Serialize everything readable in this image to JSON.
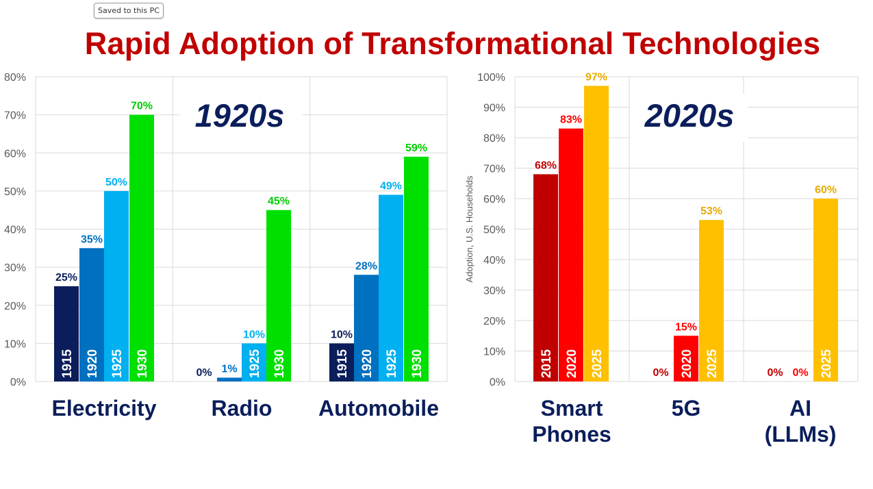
{
  "notification": {
    "text": "Saved to this PC"
  },
  "title": "Rapid Adoption of Transformational Technologies",
  "chart_data": [
    {
      "type": "bar",
      "label": "1920s",
      "ylabel": "",
      "ylim": [
        0,
        80
      ],
      "yticks": [
        "0%",
        "10%",
        "20%",
        "30%",
        "40%",
        "50%",
        "60%",
        "70%",
        "80%"
      ],
      "categories": [
        "Electricity",
        "Radio",
        "Automobile"
      ],
      "series": [
        {
          "name": "1915",
          "color": "#0b1e5b",
          "label_color": "#0b1e5b",
          "values": [
            25,
            0,
            10
          ],
          "labels": [
            "25%",
            "0%",
            "10%"
          ]
        },
        {
          "name": "1920",
          "color": "#0070c0",
          "label_color": "#0070c0",
          "values": [
            35,
            1,
            28
          ],
          "labels": [
            "35%",
            "1%",
            "28%"
          ]
        },
        {
          "name": "1925",
          "color": "#00b0f0",
          "label_color": "#00b0f0",
          "values": [
            50,
            10,
            49
          ],
          "labels": [
            "50%",
            "10%",
            "49%"
          ]
        },
        {
          "name": "1930",
          "color": "#00e000",
          "label_color": "#00cc00",
          "values": [
            70,
            45,
            59
          ],
          "labels": [
            "70%",
            "45%",
            "59%"
          ]
        }
      ]
    },
    {
      "type": "bar",
      "label": "2020s",
      "ylabel": "Adoption, U.S. Households",
      "ylim": [
        0,
        100
      ],
      "yticks": [
        "0%",
        "10%",
        "20%",
        "30%",
        "40%",
        "50%",
        "60%",
        "70%",
        "80%",
        "90%",
        "100%"
      ],
      "categories": [
        "Smart Phones",
        "5G",
        "AI (LLMs)"
      ],
      "category_lines": [
        [
          "Smart",
          "Phones"
        ],
        [
          "5G"
        ],
        [
          "AI",
          "(LLMs)"
        ]
      ],
      "series": [
        {
          "name": "2015",
          "color": "#c00000",
          "label_color": "#c00000",
          "values": [
            68,
            0,
            0
          ],
          "labels": [
            "68%",
            "0%",
            "0%"
          ]
        },
        {
          "name": "2020",
          "color": "#ff0000",
          "label_color": "#ff0000",
          "values": [
            83,
            15,
            0
          ],
          "labels": [
            "83%",
            "15%",
            "0%"
          ]
        },
        {
          "name": "2025",
          "color": "#ffc000",
          "label_color": "#e6ac00",
          "values": [
            97,
            53,
            60
          ],
          "labels": [
            "97%",
            "53%",
            "60%"
          ]
        }
      ]
    }
  ]
}
